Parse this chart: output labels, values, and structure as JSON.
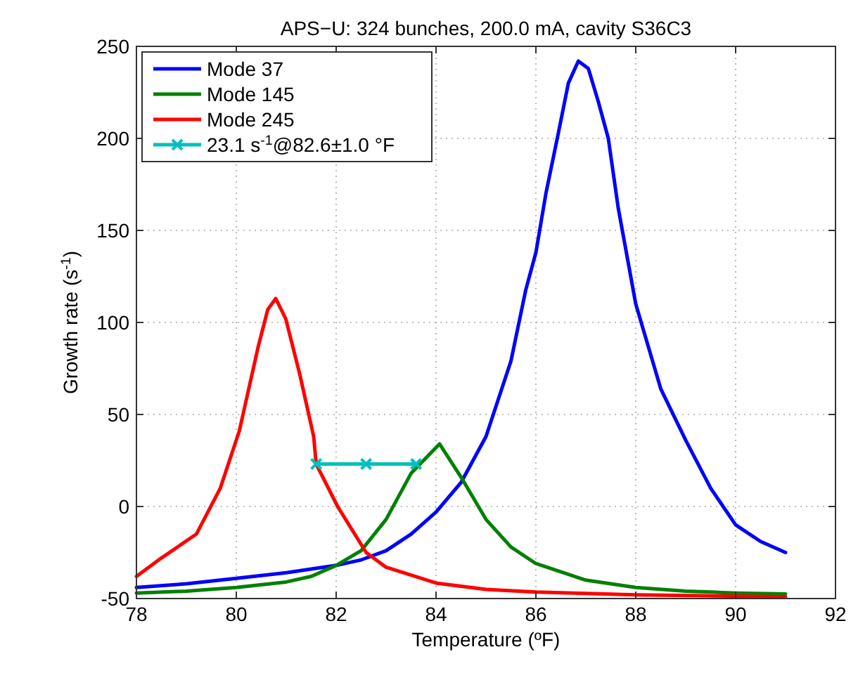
{
  "chart_data": {
    "type": "line",
    "title": "APS−U: 324 bunches, 200.0 mA, cavity S36C3",
    "xlabel": "Temperature (ºF)",
    "ylabel": "Growth rate (s$^{-1}$)",
    "xlim": [
      78,
      92
    ],
    "ylim": [
      -50,
      250
    ],
    "xticks": [
      78,
      80,
      82,
      84,
      86,
      88,
      90,
      92
    ],
    "yticks": [
      -50,
      0,
      50,
      100,
      150,
      200,
      250
    ],
    "grid": true,
    "legend": "top left",
    "line_style": "solid",
    "series": [
      {
        "name": "Mode 37",
        "color": "#0000ff",
        "x": [
          78,
          79,
          80,
          81,
          82,
          82.5,
          83,
          83.5,
          84,
          84.5,
          85,
          85.5,
          85.8,
          86,
          86.2,
          86.45,
          86.65,
          86.85,
          87.05,
          87.25,
          87.45,
          87.65,
          88,
          88.5,
          89,
          89.5,
          90,
          90.5,
          91
        ],
        "values": [
          -44,
          -42,
          -39,
          -36,
          -32,
          -29,
          -24,
          -15,
          -3,
          13,
          38,
          79,
          118,
          138,
          170,
          203,
          230,
          242,
          238,
          220,
          200,
          162,
          110,
          64,
          36,
          10,
          -10,
          -19,
          -25
        ]
      },
      {
        "name": "Mode 145",
        "color": "#008000",
        "x": [
          78,
          79,
          80,
          81,
          81.5,
          82,
          82.5,
          83,
          83.5,
          84.07,
          84.5,
          85,
          85.5,
          86,
          87,
          88,
          89,
          90,
          91
        ],
        "values": [
          -47,
          -46,
          -44,
          -41,
          -38,
          -32,
          -24,
          -7,
          18,
          34,
          16,
          -7,
          -22,
          -31,
          -40,
          -44,
          -46,
          -47,
          -47.5
        ]
      },
      {
        "name": "Mode 245",
        "color": "#ff0000",
        "x": [
          78,
          78.5,
          79.2,
          79.68,
          80.06,
          80.44,
          80.63,
          80.79,
          80.99,
          81.27,
          81.55,
          81.6,
          82.03,
          82.6,
          83,
          84,
          85,
          86,
          88,
          91
        ],
        "values": [
          -38,
          -28,
          -15,
          10,
          41,
          87,
          107,
          113,
          102,
          72,
          38,
          23,
          0,
          -25,
          -33,
          -41.6,
          -45,
          -46.5,
          -48,
          -49
        ]
      },
      {
        "name": "23.1 s$^{-1}$@82.6±1.0 °F",
        "color": "#00bfbf",
        "marker": "cross",
        "x": [
          81.6,
          82.6,
          83.6
        ],
        "values": [
          23.1,
          23.1,
          23.1
        ]
      }
    ]
  }
}
